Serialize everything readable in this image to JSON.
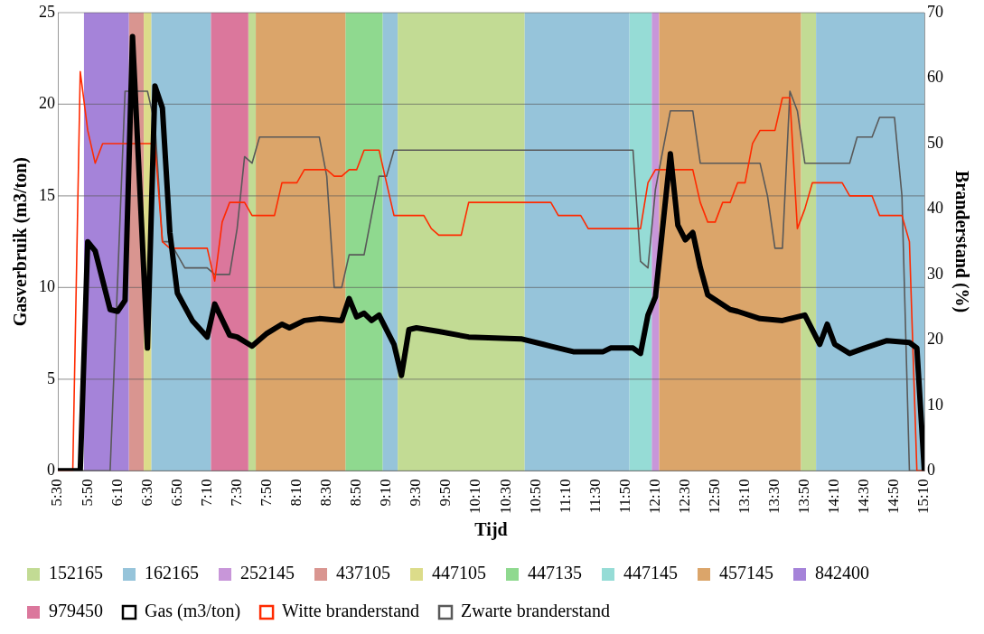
{
  "chart_data": {
    "type": "line",
    "xlabel": "Tijd",
    "ylabel": "Gasverbruik (m3/ton)",
    "y2label": "Branderstand (%)",
    "xlim": [
      5.5,
      15.1667
    ],
    "xticks": [
      {
        "value": 5.5,
        "label": "5:30"
      },
      {
        "value": 5.8333,
        "label": "5:50"
      },
      {
        "value": 6.1667,
        "label": "6:10"
      },
      {
        "value": 6.5,
        "label": "6:30"
      },
      {
        "value": 6.8333,
        "label": "6:50"
      },
      {
        "value": 7.1667,
        "label": "7:10"
      },
      {
        "value": 7.5,
        "label": "7:30"
      },
      {
        "value": 7.8333,
        "label": "7:50"
      },
      {
        "value": 8.1667,
        "label": "8:10"
      },
      {
        "value": 8.5,
        "label": "8:30"
      },
      {
        "value": 8.8333,
        "label": "8:50"
      },
      {
        "value": 9.1667,
        "label": "9:10"
      },
      {
        "value": 9.5,
        "label": "9:30"
      },
      {
        "value": 9.8333,
        "label": "9:50"
      },
      {
        "value": 10.1667,
        "label": "10:10"
      },
      {
        "value": 10.5,
        "label": "10:30"
      },
      {
        "value": 10.8333,
        "label": "10:50"
      },
      {
        "value": 11.1667,
        "label": "11:10"
      },
      {
        "value": 11.5,
        "label": "11:30"
      },
      {
        "value": 11.8333,
        "label": "11:50"
      },
      {
        "value": 12.1667,
        "label": "12:10"
      },
      {
        "value": 12.5,
        "label": "12:30"
      },
      {
        "value": 12.8333,
        "label": "12:50"
      },
      {
        "value": 13.1667,
        "label": "13:10"
      },
      {
        "value": 13.5,
        "label": "13:30"
      },
      {
        "value": 13.8333,
        "label": "13:50"
      },
      {
        "value": 14.1667,
        "label": "14:10"
      },
      {
        "value": 14.5,
        "label": "14:30"
      },
      {
        "value": 14.8333,
        "label": "14:50"
      },
      {
        "value": 15.1667,
        "label": "15:10"
      }
    ],
    "ylim": [
      0,
      25
    ],
    "yticks": [
      0,
      5,
      10,
      15,
      20,
      25
    ],
    "y2lim": [
      0,
      70
    ],
    "y2ticks": [
      0,
      10,
      20,
      30,
      40,
      50,
      60,
      70
    ],
    "grid": "y",
    "legend": "bottom",
    "marker": "none",
    "bands": [
      {
        "axis": "x",
        "from": 7.625,
        "to": 7.7083,
        "label": "152165",
        "color": "#c2db94"
      },
      {
        "axis": "x",
        "from": 6.5417,
        "to": 7.2083,
        "label": "162165",
        "color": "#96c4da"
      },
      {
        "axis": "x",
        "from": 12.125,
        "to": 12.2083,
        "label": "252145",
        "color": "#c896d9"
      },
      {
        "axis": "x",
        "from": 6.2917,
        "to": 6.4583,
        "label": "437105",
        "color": "#d99590"
      },
      {
        "axis": "x",
        "from": 6.4583,
        "to": 6.5417,
        "label": "447105",
        "color": "#dcdc8a"
      },
      {
        "axis": "x",
        "from": 8.7083,
        "to": 9.125,
        "label": "447135",
        "color": "#8fd98f"
      },
      {
        "axis": "x",
        "from": 11.875,
        "to": 12.125,
        "label": "447145",
        "color": "#96dcd6"
      },
      {
        "axis": "x",
        "from": 7.7083,
        "to": 8.7083,
        "label": "457145",
        "color": "#dba56a"
      },
      {
        "axis": "x",
        "from": 5.7917,
        "to": 6.2917,
        "label": "842400",
        "color": "#a583d9"
      },
      {
        "axis": "x",
        "from": 7.2083,
        "to": 7.625,
        "label": "979450",
        "color": "#db779c"
      },
      {
        "axis": "x",
        "from": 9.125,
        "to": 9.2917,
        "color": "#96c4da"
      },
      {
        "axis": "x",
        "from": 9.2917,
        "to": 10.7083,
        "color": "#c2db94"
      },
      {
        "axis": "x",
        "from": 10.7083,
        "to": 11.875,
        "color": "#96c4da"
      },
      {
        "axis": "x",
        "from": 12.2083,
        "to": 13.7917,
        "color": "#dba56a"
      },
      {
        "axis": "x",
        "from": 13.7917,
        "to": 13.9583,
        "color": "#c2db94"
      },
      {
        "axis": "x",
        "from": 13.9583,
        "to": 15.1667,
        "color": "#96c4da"
      }
    ],
    "series": [
      {
        "name": "Gas (m3/ton)",
        "color": "#000000",
        "x": [
          5.5,
          5.75,
          5.8333,
          5.9167,
          6.0833,
          6.1667,
          6.25,
          6.3333,
          6.5,
          6.5833,
          6.6667,
          6.75,
          6.8333,
          7,
          7.1667,
          7.25,
          7.4167,
          7.5,
          7.6667,
          7.8333,
          8,
          8.0833,
          8.25,
          8.4167,
          8.6667,
          8.75,
          8.8333,
          8.9167,
          9,
          9.0833,
          9.25,
          9.3333,
          9.4167,
          9.5,
          9.75,
          10.0833,
          10.6667,
          10.9167,
          11,
          11.25,
          11.5833,
          11.6667,
          11.9167,
          12,
          12.0833,
          12.1667,
          12.3333,
          12.4167,
          12.5,
          12.5833,
          12.6667,
          12.75,
          13,
          13.0833,
          13.3333,
          13.5833,
          13.8333,
          14,
          14.0833,
          14.1667,
          14.3333,
          14.5,
          14.75,
          15,
          15.0833,
          15.1667
        ],
        "values": [
          0,
          0,
          12.5,
          12.0,
          8.8,
          8.7,
          9.3,
          23.7,
          6.7,
          21.0,
          19.8,
          13.0,
          9.7,
          8.2,
          7.3,
          9.1,
          7.4,
          7.3,
          6.8,
          7.5,
          8.0,
          7.8,
          8.2,
          8.3,
          8.2,
          9.4,
          8.4,
          8.6,
          8.2,
          8.5,
          6.9,
          5.2,
          7.7,
          7.8,
          7.6,
          7.3,
          7.2,
          6.9,
          6.8,
          6.5,
          6.5,
          6.7,
          6.7,
          6.4,
          8.5,
          9.5,
          17.3,
          13.4,
          12.6,
          13.0,
          11.1,
          9.6,
          8.8,
          8.7,
          8.3,
          8.2,
          8.5,
          6.9,
          8.0,
          6.9,
          6.4,
          6.7,
          7.1,
          7.0,
          6.7,
          0
        ]
      },
      {
        "name": "Witte branderstand",
        "axis": "y2",
        "color": "#ff2a00",
        "x": [
          5.5,
          5.6667,
          5.75,
          5.8333,
          5.9167,
          6,
          6.5833,
          6.6667,
          6.75,
          7.1667,
          7.25,
          7.3333,
          7.4167,
          7.5833,
          7.6667,
          7.9167,
          8,
          8.1667,
          8.25,
          8.5,
          8.5833,
          8.6667,
          8.75,
          8.8333,
          8.9167,
          9.0833,
          9.25,
          9.5833,
          9.6667,
          9.75,
          10,
          10.0833,
          11,
          11.0833,
          11.3333,
          11.4167,
          12,
          12.0833,
          12.1667,
          12.5833,
          12.6667,
          12.75,
          12.8333,
          12.9167,
          13,
          13.0833,
          13.1667,
          13.25,
          13.3333,
          13.5,
          13.5833,
          13.6667,
          13.75,
          13.8333,
          13.9167,
          14.25,
          14.3333,
          14.5833,
          14.6667,
          14.9167,
          15,
          15.0833,
          15.1667
        ],
        "values": [
          0,
          0,
          61,
          52,
          47,
          50,
          50,
          35,
          34,
          34,
          29,
          38,
          41,
          41,
          39,
          39,
          44,
          44,
          46,
          46,
          45,
          45,
          46,
          46,
          49,
          49,
          39,
          39,
          37,
          36,
          36,
          41,
          41,
          39,
          39,
          37,
          37,
          44,
          46,
          46,
          41,
          38,
          38,
          41,
          41,
          44,
          44,
          50,
          52,
          52,
          57,
          57,
          37,
          40,
          44,
          44,
          42,
          42,
          39,
          39,
          35,
          0,
          0
        ]
      },
      {
        "name": "Zwarte branderstand",
        "axis": "y2",
        "color": "#595959",
        "x": [
          5.5,
          6.0833,
          6.25,
          6.5,
          6.5833,
          6.6667,
          6.75,
          6.9167,
          7.1667,
          7.25,
          7.4167,
          7.5,
          7.5833,
          7.6667,
          7.75,
          8.4167,
          8.5,
          8.5833,
          8.6667,
          8.75,
          8.9167,
          9.0833,
          9.1667,
          9.25,
          11.9167,
          12,
          12.0833,
          12.1667,
          12.25,
          12.3333,
          12.5833,
          12.6667,
          13.3333,
          13.4167,
          13.5,
          13.5833,
          13.6667,
          13.75,
          13.8333,
          14.3333,
          14.4167,
          14.5833,
          14.6667,
          14.8333,
          14.9167,
          15,
          15.1667
        ],
        "values": [
          0,
          0,
          58,
          58,
          53,
          35,
          35,
          31,
          31,
          30,
          30,
          37,
          48,
          47,
          51,
          51,
          45,
          28,
          28,
          33,
          33,
          45,
          45,
          49,
          49,
          32,
          31,
          43,
          49,
          55,
          55,
          47,
          47,
          42,
          34,
          34,
          58,
          55,
          47,
          47,
          51,
          51,
          54,
          54,
          42,
          0,
          0
        ]
      }
    ]
  }
}
